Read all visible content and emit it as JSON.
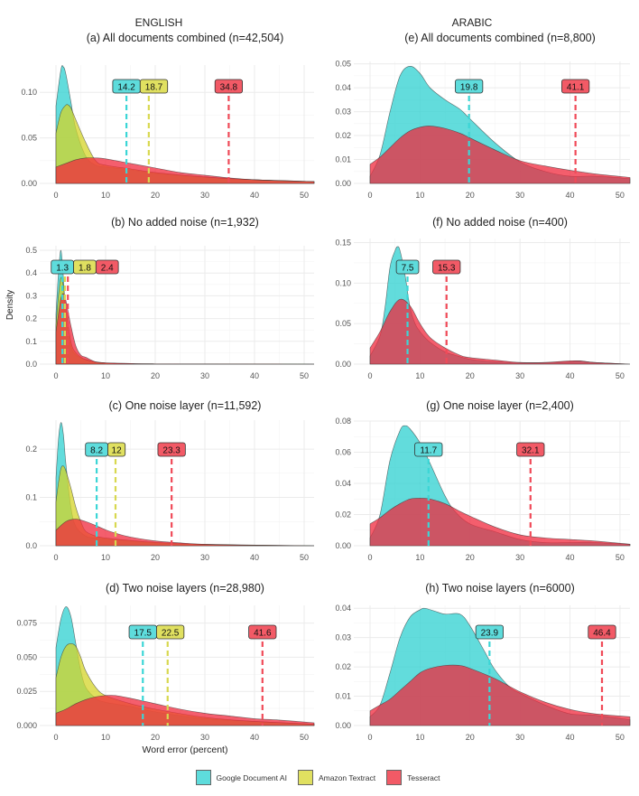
{
  "column_titles": [
    "ENGLISH",
    "ARABIC"
  ],
  "colors": {
    "google": "#2ed0d0",
    "amazon": "#d4d428",
    "tesseract": "#f0283c",
    "grid": "#ebebeb",
    "axis_text": "#555555"
  },
  "legend": [
    {
      "key": "google",
      "label": "Google Document AI"
    },
    {
      "key": "amazon",
      "label": "Amazon Textract"
    },
    {
      "key": "tesseract",
      "label": "Tesseract"
    }
  ],
  "chart_data": [
    {
      "type": "area",
      "panel": "a",
      "title": "(a) All documents combined (n=42,504)",
      "xlabel": "",
      "ylabel": "",
      "xlim": [
        0,
        52
      ],
      "ylim": [
        0,
        0.13
      ],
      "xticks": [
        0,
        10,
        20,
        30,
        40,
        50
      ],
      "yticks": [
        0,
        0.05,
        0.1
      ],
      "ytick_labels": [
        "0.00",
        "0.05",
        "0.10"
      ],
      "series": [
        {
          "name": "Google Document AI",
          "key": "google",
          "mean": 14.2,
          "x": [
            0,
            1,
            1.5,
            2,
            3,
            4,
            6,
            8,
            10,
            15,
            20,
            30,
            40,
            52
          ],
          "y": [
            0.085,
            0.125,
            0.128,
            0.12,
            0.09,
            0.06,
            0.03,
            0.02,
            0.018,
            0.015,
            0.011,
            0.007,
            0.004,
            0.002
          ]
        },
        {
          "name": "Amazon Textract",
          "key": "amazon",
          "mean": 18.7,
          "x": [
            0,
            1,
            2,
            2.5,
            3,
            4,
            6,
            8,
            10,
            15,
            20,
            30,
            40,
            52
          ],
          "y": [
            0.055,
            0.078,
            0.086,
            0.086,
            0.083,
            0.07,
            0.045,
            0.025,
            0.02,
            0.016,
            0.012,
            0.007,
            0.004,
            0.002
          ]
        },
        {
          "name": "Tesseract",
          "key": "tesseract",
          "mean": 34.8,
          "x": [
            0,
            2,
            4,
            6,
            8,
            10,
            15,
            20,
            25,
            30,
            35,
            40,
            45,
            52
          ],
          "y": [
            0.018,
            0.022,
            0.026,
            0.028,
            0.028,
            0.027,
            0.022,
            0.017,
            0.012,
            0.009,
            0.006,
            0.004,
            0.003,
            0.002
          ]
        }
      ]
    },
    {
      "type": "area",
      "panel": "b",
      "title": "(b) No added noise (n=1,932)",
      "xlabel": "",
      "ylabel": "Density",
      "xlim": [
        0,
        52
      ],
      "ylim": [
        0,
        0.52
      ],
      "xticks": [
        0,
        10,
        20,
        30,
        40,
        50
      ],
      "yticks": [
        0,
        0.1,
        0.2,
        0.3,
        0.4,
        0.5
      ],
      "ytick_labels": [
        "0.0",
        "0.1",
        "0.2",
        "0.3",
        "0.4",
        "0.5"
      ],
      "series": [
        {
          "name": "Google Document AI",
          "key": "google",
          "mean": 1.3,
          "x": [
            0,
            0.5,
            1,
            1.5,
            2,
            3,
            4,
            6,
            10,
            20,
            52
          ],
          "y": [
            0.22,
            0.4,
            0.5,
            0.38,
            0.2,
            0.08,
            0.04,
            0.02,
            0.005,
            0.001,
            0
          ]
        },
        {
          "name": "Amazon Textract",
          "key": "amazon",
          "mean": 1.8,
          "x": [
            0,
            0.5,
            1,
            1.5,
            2,
            3,
            4,
            6,
            10,
            20,
            52
          ],
          "y": [
            0.17,
            0.3,
            0.38,
            0.34,
            0.25,
            0.1,
            0.05,
            0.02,
            0.005,
            0.001,
            0
          ]
        },
        {
          "name": "Tesseract",
          "key": "tesseract",
          "mean": 2.4,
          "x": [
            0,
            0.5,
            1,
            1.5,
            2,
            3,
            4,
            5,
            6,
            8,
            10,
            15,
            20,
            52
          ],
          "y": [
            0.14,
            0.22,
            0.29,
            0.31,
            0.28,
            0.17,
            0.08,
            0.04,
            0.03,
            0.01,
            0.006,
            0.003,
            0.001,
            0
          ]
        }
      ]
    },
    {
      "type": "area",
      "panel": "c",
      "title": "(c) One noise layer (n=11,592)",
      "xlabel": "",
      "ylabel": "",
      "xlim": [
        0,
        52
      ],
      "ylim": [
        0,
        0.26
      ],
      "xticks": [
        0,
        10,
        20,
        30,
        40,
        50
      ],
      "yticks": [
        0,
        0.1,
        0.2
      ],
      "ytick_labels": [
        "0.0",
        "0.1",
        "0.2"
      ],
      "series": [
        {
          "name": "Google Document AI",
          "key": "google",
          "mean": 8.2,
          "x": [
            0,
            0.5,
            1,
            1.5,
            2,
            3,
            4,
            6,
            8,
            10,
            15,
            20,
            30,
            52
          ],
          "y": [
            0.14,
            0.22,
            0.255,
            0.23,
            0.17,
            0.08,
            0.04,
            0.02,
            0.016,
            0.014,
            0.01,
            0.006,
            0.002,
            0
          ]
        },
        {
          "name": "Amazon Textract",
          "key": "amazon",
          "mean": 12,
          "x": [
            0,
            0.5,
            1,
            1.5,
            2,
            3,
            4,
            5,
            6,
            8,
            10,
            15,
            20,
            30,
            52
          ],
          "y": [
            0.09,
            0.13,
            0.16,
            0.165,
            0.155,
            0.12,
            0.08,
            0.05,
            0.03,
            0.02,
            0.016,
            0.011,
            0.007,
            0.003,
            0
          ]
        },
        {
          "name": "Tesseract",
          "key": "tesseract",
          "mean": 23.3,
          "x": [
            0,
            2,
            4,
            6,
            8,
            10,
            12,
            15,
            20,
            25,
            30,
            40,
            52
          ],
          "y": [
            0.032,
            0.05,
            0.055,
            0.05,
            0.042,
            0.033,
            0.026,
            0.018,
            0.01,
            0.006,
            0.003,
            0.001,
            0
          ]
        }
      ]
    },
    {
      "type": "area",
      "panel": "d",
      "title": "(d) Two noise layers (n=28,980)",
      "xlabel": "Word error (percent)",
      "ylabel": "",
      "xlim": [
        0,
        52
      ],
      "ylim": [
        0,
        0.088
      ],
      "xticks": [
        0,
        10,
        20,
        30,
        40,
        50
      ],
      "yticks": [
        0,
        0.025,
        0.05,
        0.075
      ],
      "ytick_labels": [
        "0.000",
        "0.025",
        "0.050",
        "0.075"
      ],
      "series": [
        {
          "name": "Google Document AI",
          "key": "google",
          "mean": 17.5,
          "x": [
            0,
            1,
            2,
            3,
            4,
            5,
            6,
            8,
            10,
            15,
            20,
            30,
            40,
            52
          ],
          "y": [
            0.057,
            0.078,
            0.087,
            0.08,
            0.06,
            0.04,
            0.028,
            0.02,
            0.017,
            0.014,
            0.01,
            0.005,
            0.003,
            0.001
          ]
        },
        {
          "name": "Amazon Textract",
          "key": "amazon",
          "mean": 22.5,
          "x": [
            0,
            1,
            2,
            3,
            4,
            5,
            6,
            8,
            10,
            15,
            20,
            30,
            40,
            52
          ],
          "y": [
            0.035,
            0.05,
            0.058,
            0.06,
            0.058,
            0.05,
            0.04,
            0.028,
            0.022,
            0.016,
            0.012,
            0.006,
            0.003,
            0.001
          ]
        },
        {
          "name": "Tesseract",
          "key": "tesseract",
          "mean": 41.6,
          "x": [
            0,
            2,
            4,
            6,
            8,
            10,
            12,
            15,
            20,
            25,
            30,
            35,
            40,
            45,
            52
          ],
          "y": [
            0.009,
            0.012,
            0.016,
            0.019,
            0.021,
            0.022,
            0.022,
            0.02,
            0.016,
            0.012,
            0.009,
            0.007,
            0.005,
            0.004,
            0.002
          ]
        }
      ]
    },
    {
      "type": "area",
      "panel": "e",
      "title": "(e) All documents combined (n=8,800)",
      "xlabel": "",
      "ylabel": "",
      "xlim": [
        0,
        52
      ],
      "ylim": [
        0,
        0.051
      ],
      "xticks": [
        0,
        10,
        20,
        30,
        40,
        50
      ],
      "yticks": [
        0,
        0.01,
        0.02,
        0.03,
        0.04,
        0.05
      ],
      "ytick_labels": [
        "0.00",
        "0.01",
        "0.02",
        "0.03",
        "0.04",
        "0.05"
      ],
      "series": [
        {
          "name": "Google Document AI",
          "key": "google",
          "mean": 19.8,
          "x": [
            0,
            2,
            4,
            6,
            8,
            10,
            12,
            15,
            18,
            20,
            25,
            30,
            35,
            40,
            45,
            52
          ],
          "y": [
            0.003,
            0.012,
            0.03,
            0.045,
            0.049,
            0.046,
            0.04,
            0.035,
            0.031,
            0.027,
            0.017,
            0.009,
            0.005,
            0.003,
            0.003,
            0.002
          ]
        },
        {
          "name": "Tesseract",
          "key": "tesseract",
          "mean": 41.1,
          "x": [
            0,
            2,
            4,
            6,
            8,
            10,
            12,
            15,
            18,
            20,
            25,
            30,
            35,
            40,
            45,
            52
          ],
          "y": [
            0.008,
            0.011,
            0.015,
            0.019,
            0.022,
            0.0235,
            0.024,
            0.023,
            0.021,
            0.019,
            0.014,
            0.0095,
            0.0073,
            0.0055,
            0.004,
            0.0025
          ]
        }
      ]
    },
    {
      "type": "area",
      "panel": "f",
      "title": "(f) No added noise (n=400)",
      "xlabel": "",
      "ylabel": "",
      "xlim": [
        0,
        52
      ],
      "ylim": [
        0,
        0.155
      ],
      "xticks": [
        0,
        10,
        20,
        30,
        40,
        50
      ],
      "yticks": [
        0,
        0.05,
        0.1,
        0.15
      ],
      "ytick_labels": [
        "0.00",
        "0.05",
        "0.10",
        "0.15"
      ],
      "series": [
        {
          "name": "Google Document AI",
          "key": "google",
          "mean": 7.5,
          "x": [
            0,
            2,
            3,
            4,
            5,
            5.5,
            6,
            7,
            8,
            9,
            10,
            12,
            15,
            17,
            20,
            25,
            30,
            35,
            40,
            42,
            45,
            52
          ],
          "y": [
            0.01,
            0.035,
            0.07,
            0.12,
            0.14,
            0.145,
            0.14,
            0.11,
            0.07,
            0.05,
            0.04,
            0.027,
            0.015,
            0.011,
            0.006,
            0.003,
            0.002,
            0.002,
            0.003,
            0.004,
            0.002,
            0
          ]
        },
        {
          "name": "Tesseract",
          "key": "tesseract",
          "mean": 15.3,
          "x": [
            0,
            2,
            4,
            6,
            8,
            10,
            12,
            15,
            18,
            20,
            25,
            30,
            35,
            40,
            42,
            45,
            52
          ],
          "y": [
            0.02,
            0.04,
            0.065,
            0.08,
            0.072,
            0.05,
            0.033,
            0.02,
            0.011,
            0.008,
            0.005,
            0.002,
            0.002,
            0.004,
            0.004,
            0.002,
            0
          ]
        }
      ]
    },
    {
      "type": "area",
      "panel": "g",
      "title": "(g) One noise layer (n=2,400)",
      "xlabel": "",
      "ylabel": "",
      "xlim": [
        0,
        52
      ],
      "ylim": [
        0,
        0.08
      ],
      "xticks": [
        0,
        10,
        20,
        30,
        40,
        50
      ],
      "yticks": [
        0,
        0.02,
        0.04,
        0.06,
        0.08
      ],
      "ytick_labels": [
        "0.00",
        "0.02",
        "0.04",
        "0.06",
        "0.08"
      ],
      "series": [
        {
          "name": "Google Document AI",
          "key": "google",
          "mean": 11.7,
          "x": [
            0,
            2,
            4,
            6,
            7,
            8,
            10,
            12,
            15,
            17,
            20,
            25,
            30,
            35,
            40,
            45,
            52
          ],
          "y": [
            0.005,
            0.02,
            0.055,
            0.074,
            0.077,
            0.075,
            0.066,
            0.053,
            0.032,
            0.022,
            0.014,
            0.009,
            0.004,
            0.002,
            0.002,
            0.002,
            0.001
          ]
        },
        {
          "name": "Tesseract",
          "key": "tesseract",
          "mean": 32.1,
          "x": [
            0,
            2,
            4,
            6,
            8,
            10,
            12,
            15,
            18,
            20,
            25,
            30,
            35,
            40,
            45,
            52
          ],
          "y": [
            0.014,
            0.018,
            0.023,
            0.027,
            0.03,
            0.0305,
            0.03,
            0.027,
            0.022,
            0.019,
            0.012,
            0.007,
            0.005,
            0.004,
            0.003,
            0.001
          ]
        }
      ]
    },
    {
      "type": "area",
      "panel": "h",
      "title": "(h) Two noise layers (n=6000)",
      "xlabel": "",
      "ylabel": "",
      "xlim": [
        0,
        52
      ],
      "ylim": [
        0,
        0.041
      ],
      "xticks": [
        0,
        10,
        20,
        30,
        40,
        50
      ],
      "yticks": [
        0,
        0.01,
        0.02,
        0.03,
        0.04
      ],
      "ytick_labels": [
        "0.00",
        "0.01",
        "0.02",
        "0.03",
        "0.04"
      ],
      "series": [
        {
          "name": "Google Document AI",
          "key": "google",
          "mean": 23.9,
          "x": [
            0,
            2,
            4,
            6,
            8,
            10,
            11,
            13,
            15,
            18,
            20,
            23,
            25,
            28,
            30,
            35,
            40,
            45,
            52
          ],
          "y": [
            0.003,
            0.007,
            0.018,
            0.03,
            0.037,
            0.0395,
            0.04,
            0.039,
            0.038,
            0.038,
            0.034,
            0.025,
            0.019,
            0.013,
            0.011,
            0.007,
            0.004,
            0.0035,
            0.002
          ]
        },
        {
          "name": "Tesseract",
          "key": "tesseract",
          "mean": 46.4,
          "x": [
            0,
            2,
            4,
            6,
            8,
            10,
            12,
            15,
            18,
            20,
            25,
            30,
            35,
            40,
            45,
            52
          ],
          "y": [
            0.005,
            0.007,
            0.009,
            0.012,
            0.015,
            0.018,
            0.0195,
            0.0205,
            0.0205,
            0.0195,
            0.016,
            0.0115,
            0.008,
            0.0055,
            0.004,
            0.003
          ]
        }
      ]
    }
  ]
}
